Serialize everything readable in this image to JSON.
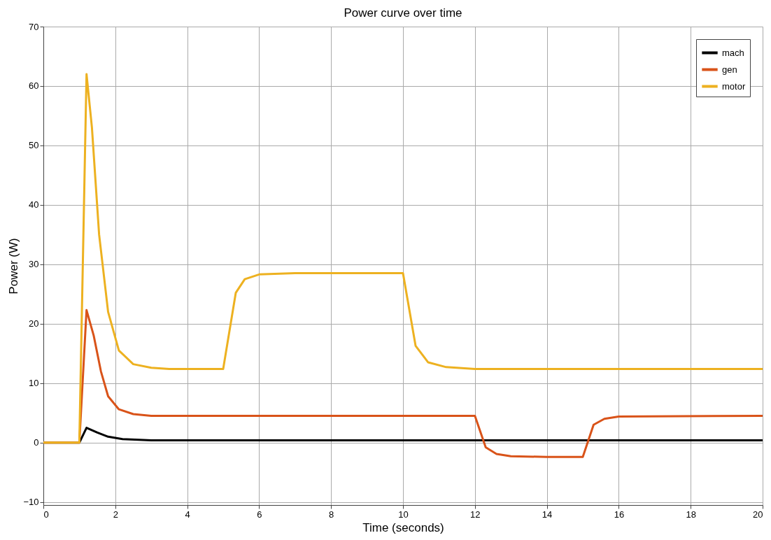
{
  "chart_data": {
    "type": "line",
    "title": "Power curve over time",
    "xlabel": "Time  (seconds)",
    "ylabel": "Power (W)",
    "xlim": [
      0,
      20
    ],
    "xticks": [
      0,
      2,
      4,
      6,
      8,
      10,
      12,
      14,
      16,
      18,
      20
    ],
    "ylim": [
      -10.5,
      70
    ],
    "yticks": [
      -10,
      0,
      10,
      20,
      30,
      40,
      50,
      60,
      70
    ],
    "grid": true,
    "legend": "top right",
    "line_style": "solid",
    "marker": "none",
    "series": [
      {
        "name": "mach",
        "color": "#000000",
        "x": [
          0,
          1,
          1.2,
          1.5,
          1.8,
          2.2,
          3,
          20
        ],
        "values": [
          0,
          0,
          2.5,
          1.7,
          1,
          0.6,
          0.4,
          0.4
        ]
      },
      {
        "name": "gen",
        "color": "#d95319",
        "x": [
          0,
          1,
          1.2,
          1.4,
          1.6,
          1.8,
          2.1,
          2.5,
          3,
          12,
          12.3,
          12.6,
          13,
          14,
          15,
          15.3,
          15.6,
          16,
          20
        ],
        "values": [
          0,
          0,
          22.3,
          18,
          12,
          7.8,
          5.6,
          4.8,
          4.5,
          4.5,
          -0.8,
          -1.9,
          -2.3,
          -2.4,
          -2.4,
          3,
          4,
          4.4,
          4.5
        ]
      },
      {
        "name": "motor",
        "color": "#edb120",
        "x": [
          0,
          1,
          1.2,
          1.35,
          1.55,
          1.8,
          2.1,
          2.5,
          3,
          3.5,
          5,
          5.35,
          5.6,
          6,
          7,
          10,
          10.35,
          10.7,
          11.2,
          12,
          20
        ],
        "values": [
          0,
          0,
          62,
          53,
          35,
          22,
          15.5,
          13.2,
          12.6,
          12.4,
          12.4,
          25.2,
          27.5,
          28.3,
          28.5,
          28.5,
          16.3,
          13.5,
          12.7,
          12.4,
          12.4
        ]
      }
    ]
  }
}
